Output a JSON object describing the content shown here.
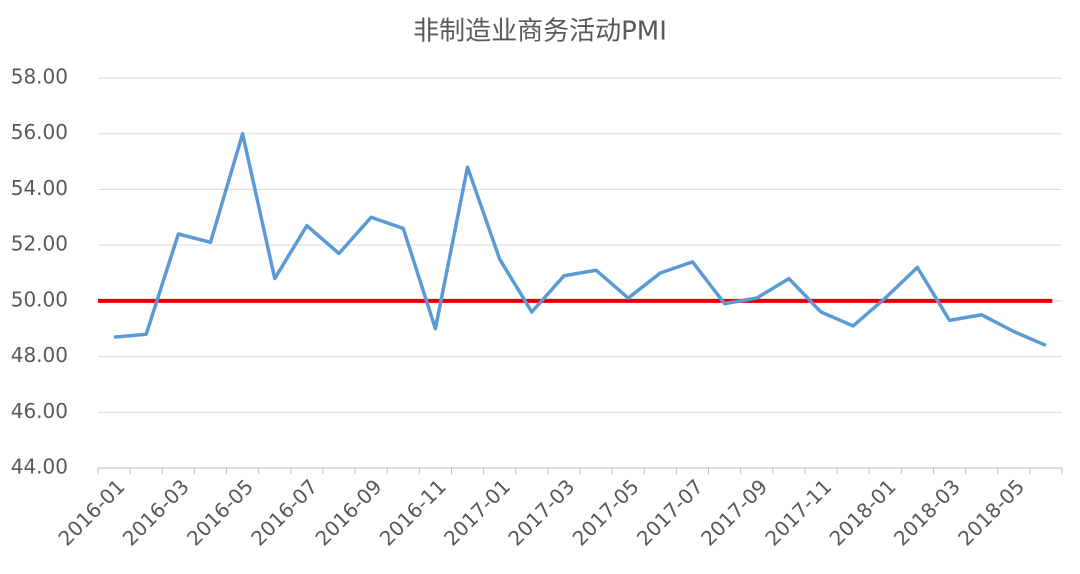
{
  "chart_data": {
    "type": "line",
    "title": "非制造业商务活动PMI",
    "categories": [
      "2016-01",
      null,
      "2016-03",
      null,
      "2016-05",
      null,
      "2016-07",
      null,
      "2016-09",
      null,
      "2016-11",
      null,
      "2017-01",
      null,
      "2017-03",
      null,
      "2017-05",
      null,
      "2017-07",
      null,
      "2017-09",
      null,
      "2017-11",
      null,
      "2018-01",
      null,
      "2018-03",
      null,
      "2018-05",
      null
    ],
    "series": [
      {
        "color": "#5b9bd5",
        "values": [
          48.7,
          48.8,
          52.4,
          52.1,
          56.0,
          50.8,
          52.7,
          51.7,
          53.0,
          52.6,
          49.0,
          54.8,
          51.5,
          49.6,
          50.9,
          51.1,
          50.1,
          51.0,
          51.4,
          49.9,
          50.1,
          50.8,
          49.6,
          49.1,
          50.1,
          51.2,
          49.3,
          49.5,
          48.9,
          48.4
        ]
      }
    ],
    "reference_line": {
      "value": 50,
      "color": "#e00000"
    },
    "ylim": [
      44,
      58
    ],
    "yticks": [
      {
        "value": 44,
        "label": "44.00"
      },
      {
        "value": 46,
        "label": "46.00"
      },
      {
        "value": 48,
        "label": "48.00"
      },
      {
        "value": 50,
        "label": "50.00"
      },
      {
        "value": 52,
        "label": "52.00"
      },
      {
        "value": 54,
        "label": "54.00"
      },
      {
        "value": 56,
        "label": "56.00"
      },
      {
        "value": 58,
        "label": "58.00"
      }
    ],
    "grid": true
  }
}
